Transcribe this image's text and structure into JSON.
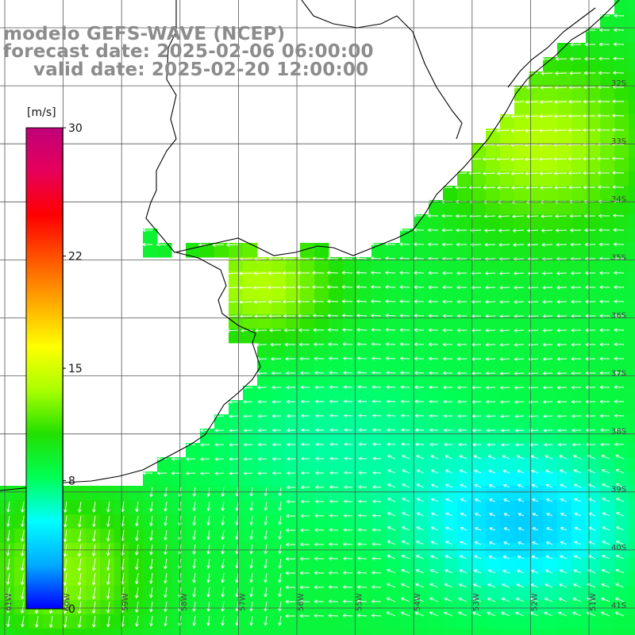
{
  "title": {
    "line1": "modelo GEFS-WAVE (NCEP)",
    "line2": "forecast date: 2025-02-06 06:00:00",
    "line3": "valid date: 2025-02-20 12:00:00"
  },
  "colorbar": {
    "units": "[m/s]",
    "ticks": [
      "30",
      "22",
      "15",
      "8",
      "0"
    ],
    "tick_values": [
      30,
      22,
      15,
      8,
      0
    ],
    "min": 0,
    "max": 30,
    "colors": [
      "#0000ff",
      "#00aaff",
      "#00ffff",
      "#00ff55",
      "#22e000",
      "#aaff00",
      "#ffff00",
      "#ffaa00",
      "#ff5500",
      "#ff0000",
      "#e6005a",
      "#c0007a"
    ]
  },
  "lat_labels": [
    "32S",
    "33S",
    "34S",
    "35S",
    "36S",
    "37S",
    "38S",
    "39S",
    "40S",
    "41S"
  ],
  "lon_labels": [
    "61W",
    "60W",
    "59W",
    "58W",
    "57W",
    "56W",
    "55W",
    "54W",
    "53W",
    "52W",
    "51W"
  ],
  "field": {
    "variable": "wind speed",
    "description_colors": {
      "land": "#ffffff",
      "coast": "#000000",
      "grid": "#555555",
      "vectors": "#ffffff"
    }
  }
}
